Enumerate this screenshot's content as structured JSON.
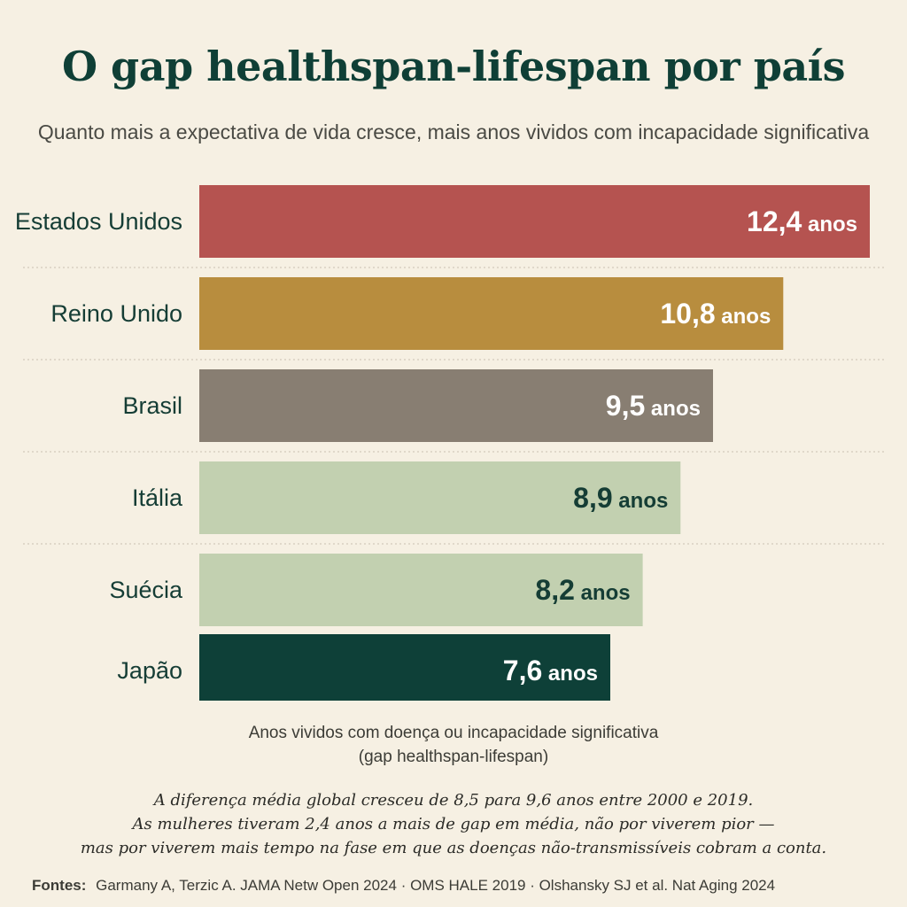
{
  "header": {
    "title": "O gap healthspan-lifespan por país",
    "subtitle": "Quanto mais a expectativa de vida cresce, mais anos vividos com incapacidade significativa"
  },
  "chart_data": {
    "type": "bar",
    "orientation": "horizontal",
    "title": "O gap healthspan-lifespan por país",
    "subtitle": "Quanto mais a expectativa de vida cresce, mais anos vividos com incapacidade significativa",
    "xlabel": "Anos vividos com doença ou incapacidade significativa",
    "xlabel_sub": "(gap healthspan-lifespan)",
    "unit": "anos",
    "categories": [
      "Estados Unidos",
      "Reino Unido",
      "Brasil",
      "Itália",
      "Suécia",
      "Japão"
    ],
    "values": [
      12.4,
      10.8,
      9.5,
      8.9,
      8.2,
      7.6
    ],
    "value_labels": [
      "12,4",
      "10,8",
      "9,5",
      "8,9",
      "8,2",
      "7,6"
    ],
    "colors": [
      "#b55350",
      "#b88d3e",
      "#887e72",
      "#c2d0b0",
      "#c2d0b0",
      "#0e4038"
    ],
    "label_colors": [
      "#ffffff",
      "#ffffff",
      "#ffffff",
      "#153d35",
      "#153d35",
      "#ffffff"
    ],
    "grid": false,
    "legend": "none"
  },
  "axis_note": {
    "line1": "Anos vividos com doença ou incapacidade significativa",
    "line2": "(gap healthspan-lifespan)"
  },
  "note": {
    "line1": "A diferença média global cresceu de 8,5 para 9,6 anos entre 2000 e 2019.",
    "line2": "As mulheres tiveram 2,4 anos a mais de gap em média, não por viverem pior —",
    "line3": "mas por viverem mais tempo na fase em que as doenças não-transmissíveis cobram a conta."
  },
  "sources": {
    "lead": "Fontes:",
    "text": "Garmany A, Terzic A. JAMA Netw Open 2024  ·  OMS HALE 2019  ·  Olshansky SJ et al. Nat Aging 2024"
  }
}
